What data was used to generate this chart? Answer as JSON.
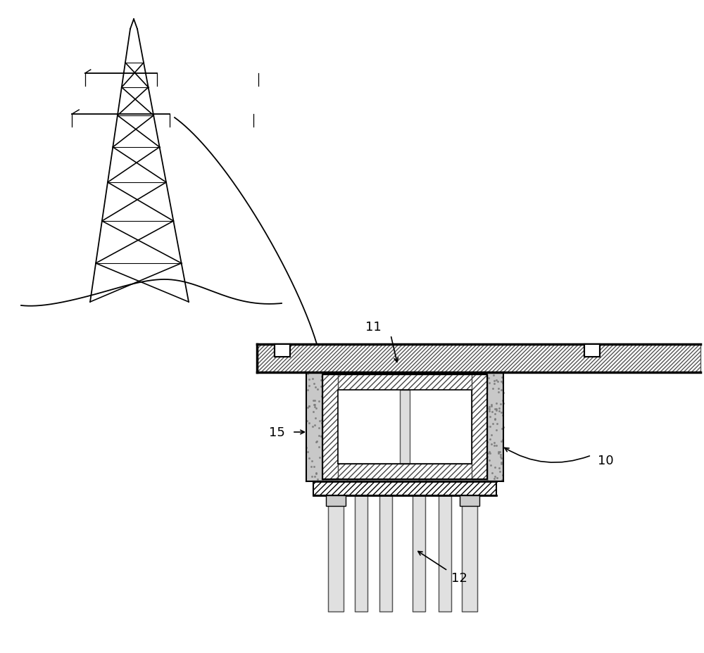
{
  "bg_color": "#ffffff",
  "line_color": "#000000",
  "label_11": "11",
  "label_10": "10",
  "label_12": "12",
  "label_15": "15",
  "label_fontsize": 13,
  "fig_width": 10.0,
  "fig_height": 9.29
}
